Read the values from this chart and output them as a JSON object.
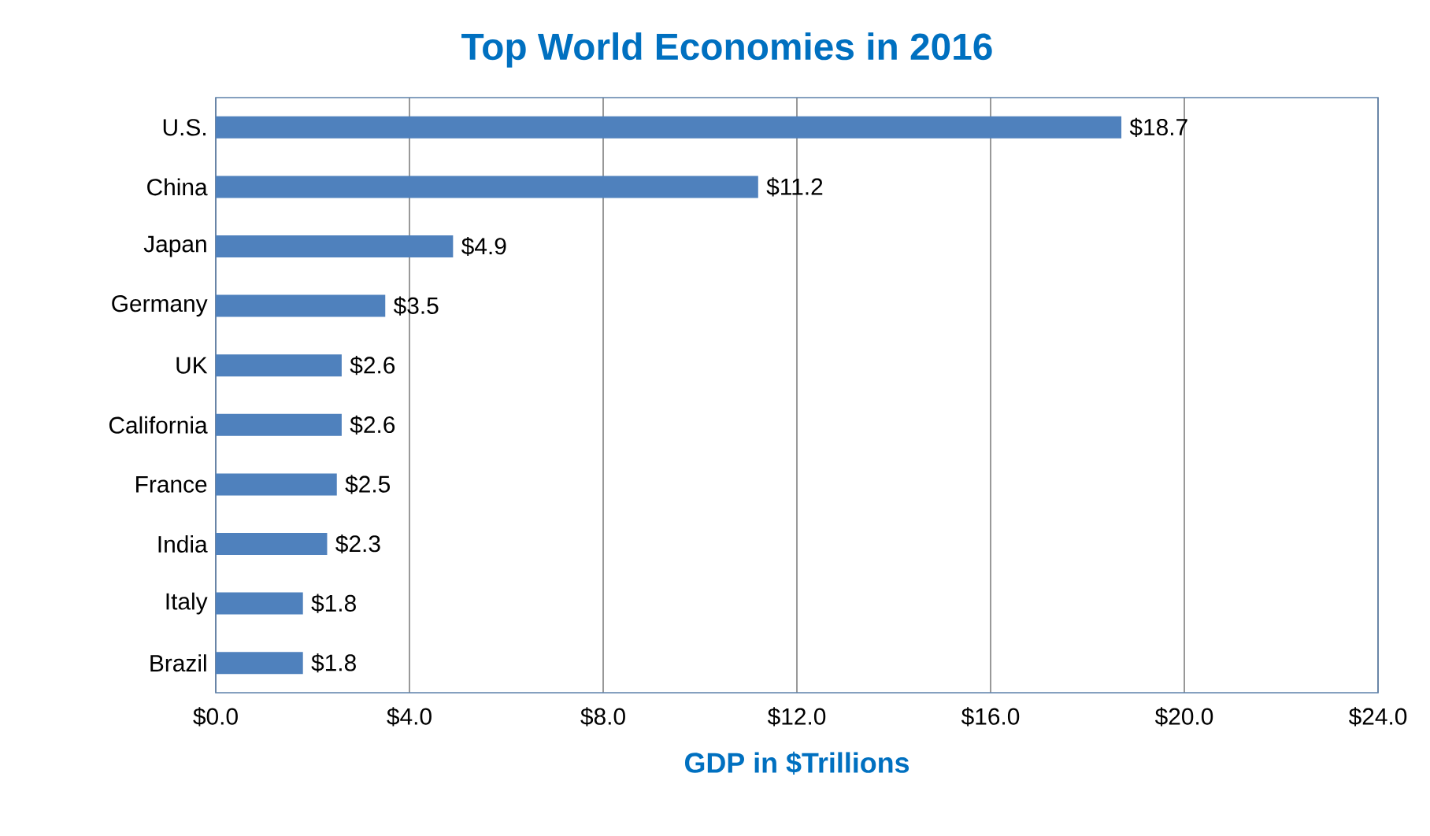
{
  "chart_data": {
    "type": "bar",
    "orientation": "horizontal",
    "title": "Top World Economies in 2016",
    "xlabel": "GDP in $Trillions",
    "categories": [
      "U.S.",
      "China",
      "Japan",
      "Germany",
      "UK",
      "California",
      "France",
      "India",
      "Italy",
      "Brazil"
    ],
    "values": [
      18.7,
      11.2,
      4.9,
      3.5,
      2.6,
      2.6,
      2.5,
      2.3,
      1.8,
      1.8
    ],
    "value_labels": [
      "$18.7",
      "$11.2",
      "$4.9",
      "$3.5",
      "$2.6",
      "$2.6",
      "$2.5",
      "$2.3",
      "$1.8",
      "$1.8"
    ],
    "color": "#4f81bd",
    "xlim": [
      0,
      24
    ],
    "xticks": [
      {
        "value": 0,
        "label": "$0.0"
      },
      {
        "value": 4,
        "label": "$4.0"
      },
      {
        "value": 8,
        "label": "$8.0"
      },
      {
        "value": 12,
        "label": "$12.0"
      },
      {
        "value": 16,
        "label": "$16.0"
      },
      {
        "value": 20,
        "label": "$20.0"
      },
      {
        "value": 24,
        "label": "$24.0"
      }
    ],
    "grid": "x"
  }
}
